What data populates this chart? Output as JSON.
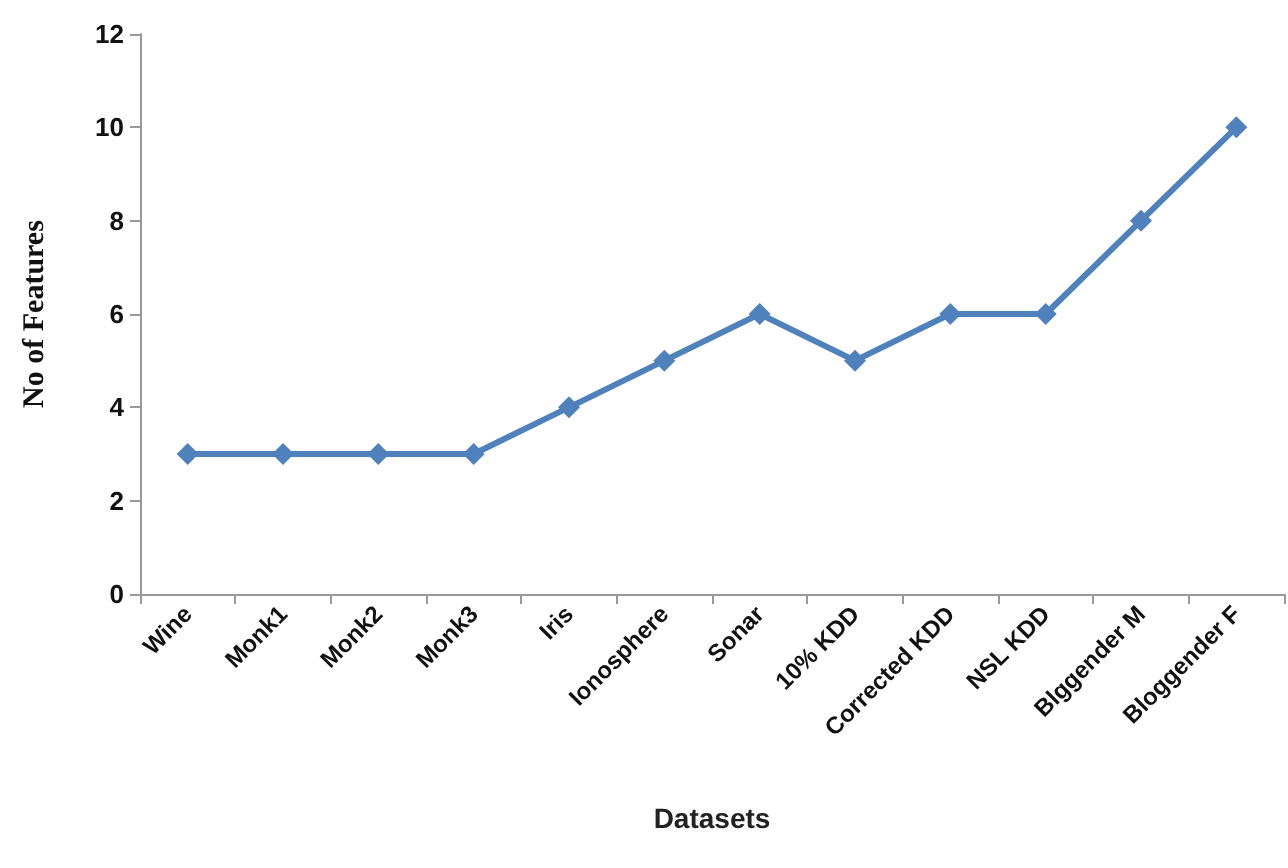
{
  "chart_data": {
    "type": "line",
    "xlabel": "Datasets",
    "ylabel": "No of Features",
    "categories": [
      "Wine",
      "Monk1",
      "Monk2",
      "Monk3",
      "Iris",
      "Ionosphere",
      "Sonar",
      "10% KDD",
      "Corrected KDD",
      "NSL KDD",
      "Blggender M",
      "Bloggender F"
    ],
    "series": [
      {
        "color": "#4f81bd",
        "values": [
          3,
          3,
          3,
          3,
          4,
          5,
          6,
          5,
          6,
          6,
          8,
          10
        ]
      }
    ],
    "ylim": [
      0,
      12
    ],
    "yticks": [
      0,
      2,
      4,
      6,
      8,
      10,
      12
    ],
    "marker": "diamond",
    "line_style": "solid",
    "grid": false
  }
}
